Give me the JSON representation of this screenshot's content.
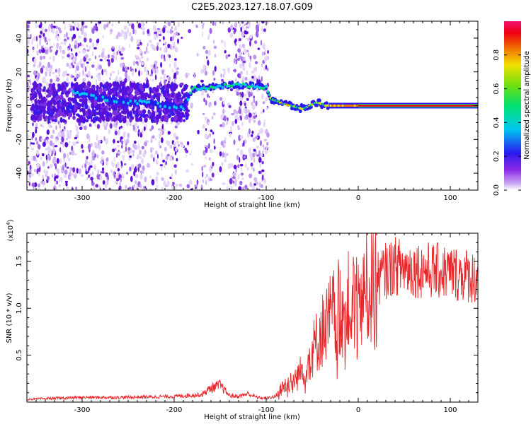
{
  "title": "C2E5.2023.127.18.07.G09",
  "chart_data": [
    {
      "type": "heatmap",
      "xlabel": "Height of straight line (km)",
      "ylabel": "Frequency (Hz)",
      "xlim": [
        -360,
        130
      ],
      "ylim": [
        -50,
        50
      ],
      "xticks": [
        -300,
        -200,
        -100,
        0,
        100
      ],
      "yticks": [
        -40,
        -20,
        0,
        20,
        40
      ],
      "colorbar": {
        "label": "Normalized spectral amplitude",
        "range": [
          0.0,
          1.0
        ],
        "ticks": [
          "0.0",
          "0.2",
          "0.4",
          "0.6",
          "0.8"
        ],
        "colormap": "rainbow (white-purple-blue-cyan-green-yellow-red-magenta)"
      },
      "ridge": [
        {
          "x": -310,
          "y": 8
        },
        {
          "x": -290,
          "y": 6
        },
        {
          "x": -270,
          "y": 3
        },
        {
          "x": -250,
          "y": 2
        },
        {
          "x": -230,
          "y": 2
        },
        {
          "x": -210,
          "y": 0
        },
        {
          "x": -190,
          "y": -1
        },
        {
          "x": -180,
          "y": 10
        },
        {
          "x": -160,
          "y": 11
        },
        {
          "x": -140,
          "y": 12
        },
        {
          "x": -120,
          "y": 12
        },
        {
          "x": -100,
          "y": 11
        },
        {
          "x": -95,
          "y": 4
        },
        {
          "x": -80,
          "y": 1
        },
        {
          "x": -60,
          "y": -2
        },
        {
          "x": -45,
          "y": 2
        },
        {
          "x": -35,
          "y": 0
        },
        {
          "x": -20,
          "y": 0
        },
        {
          "x": 0,
          "y": 0
        },
        {
          "x": 50,
          "y": 0
        },
        {
          "x": 130,
          "y": 0
        }
      ]
    },
    {
      "type": "line",
      "xlabel": "Height of straight line (km)",
      "ylabel": "SNR (10 * v/v)",
      "multiplier": "(x10^4)",
      "xlim": [
        -360,
        130
      ],
      "ylim": [
        0,
        18000
      ],
      "xticks": [
        -300,
        -200,
        -100,
        0,
        100
      ],
      "yticks": [
        "0.5",
        "1.0",
        "1.5"
      ],
      "series": [
        {
          "color": "#e8272a",
          "x": [
            -360,
            -300,
            -260,
            -200,
            -170,
            -160,
            -150,
            -140,
            -130,
            -120,
            -110,
            -100,
            -90,
            -80,
            -70,
            -60,
            -50,
            -40,
            -30,
            -20,
            -10,
            0,
            10,
            20,
            30,
            40,
            60,
            80,
            100,
            120,
            130
          ],
          "y": [
            300,
            500,
            500,
            600,
            800,
            1500,
            1800,
            700,
            600,
            900,
            500,
            400,
            600,
            1800,
            2500,
            3500,
            5500,
            7500,
            9000,
            10000,
            10500,
            11000,
            12000,
            13000,
            14000,
            14500,
            14200,
            14000,
            13800,
            13500,
            13200
          ]
        }
      ]
    }
  ]
}
